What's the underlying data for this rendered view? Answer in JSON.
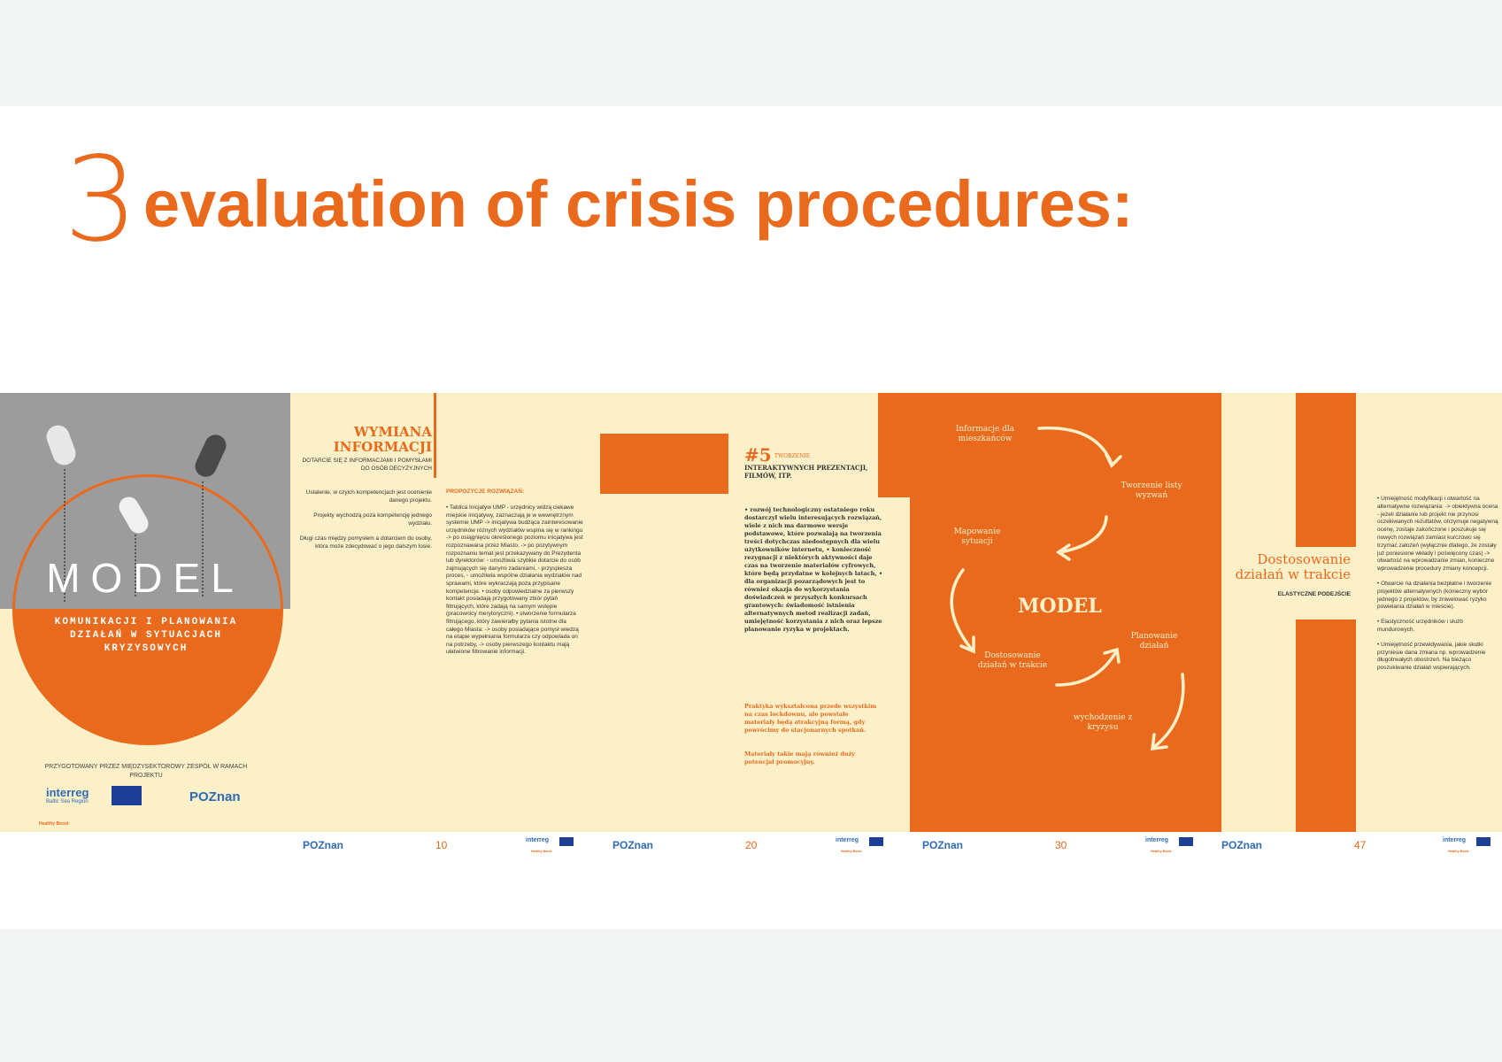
{
  "heading": {
    "number": "3",
    "title": "evaluation of crisis procedures:"
  },
  "colors": {
    "accent": "#ea6a1d",
    "cream": "#fbf0c8",
    "gray": "#9c9c9c",
    "logo_blue": "#2e6bb5"
  },
  "cover": {
    "model_word": "MODEL",
    "subtitle": "KOMUNIKACJI I PLANOWANIA DZIAŁAŃ W SYTUACJACH KRYZYSOWYCH",
    "prepared_by": "PRZYGOTOWANY PRZEZ MIĘDZYSEKTOROWY ZESPÓŁ W RAMACH PROJEKTU",
    "logo_interreg": "interreg",
    "logo_interreg_sub": "Baltic Sea Region",
    "logo_poznan": "POZnan",
    "project_name": "Healthy Boost"
  },
  "page10": {
    "title": "WYMIANA INFORMACJI",
    "subtitle": "DOTARCIE SIĘ Z INFORMACJAMI I POMYSŁAMI DO OSÓB DECYZYJNYCH",
    "col1": [
      "Ustalenie, w czyich kompetencjach jest ocenienie danego projektu.",
      "Projekty wychodzą poza kompetencję jednego wydziału.",
      "Długi czas między pomysłem a dotarciem do osoby, która może zdecydować o jego dalszym losie."
    ],
    "proposals_label": "PROPOZYCJE ROZWIĄZAŃ:",
    "col2": "• Tablica Inicjatyw UMP - urzędnicy widzą ciekawe miejskie inicjatywy, zaznaczają je w wewnętrznym systemie UMP -> inicjatywa budząca zainteresowanie urzędników różnych wydziałów wspina się w rankingu -> po osiągnięciu określonego poziomu inicjatywa jest rozpoznawana przez Miasto. -> po pozytywnym rozpoznaniu temat jest przekazywany do Prezydenta lub dyrektorów: ◦ umożliwia szybkie dotarcie do osób zajmujących się danymi zadaniami, ◦ przyspiesza proces, ◦ umożliwia wspólne działania wydziałów nad sprawami, które wykraczają poza przypisane kompetencje. • osoby odpowiedzialne za pierwszy kontakt posiadają przygotowany zbiór pytań filtrujących, które zadają na samym wstępie (pracownicy merytoryczni). • stworzenie formularza filtrującego, który zawierałby pytania istotne dla całego Miasta: -> osoby posiadające pomysł wiedzą na etapie wypełniania formularza czy odpowiada on na potrzeby, -> osoby pierwszego kontaktu mają ułatwione filtrowanie informacji.",
    "page_number": "10"
  },
  "page20": {
    "num": "#5",
    "num_tag": "TWORZENIE",
    "num_sub": "INTERAKTYWNYCH PREZENTACJI, FILMÓW, ITP.",
    "list": "• rozwój technologiczny ostatniego roku dostarczył wielu interesujących rozwiązań, wiele z nich ma darmowe wersje podstawowe, które pozwalają na tworzenia treści dotychczas niedostępnych dla wielu użytkowników internetu, • konieczność rezygnacji z niektórych aktywności daje czas na tworzenie materiałów cyfrowych, które będą przydatne w kolejnych latach, • dla organizacji pozarządowych jest to również okazja do wykorzystania doświadczeń w przyszłych konkursach grantowych: świadomość istnienia alternatywnych metod realizacji zadań, umiejętność korzystania z nich oraz lepsze planowanie ryzyka w projektach.",
    "practice": "Praktyka wykształcona przede wszystkim na czas lockdownu, ale powstałe materiały będą atrakcyjną formą, gdy powrócimy do stacjonarnych spotkań.",
    "materials": "Materiały takie mają również duży potencjał promocyjny.",
    "page_number": "20"
  },
  "page30": {
    "labels": {
      "info": "Informacje dla mieszkańców",
      "challenges": "Tworzenie listy wyzwań",
      "mapping": "Mapowanie sytuacji",
      "model": "MODEL",
      "planning": "Planowanie działań",
      "adjusting": "Dostosowanie działań w trakcie",
      "exit": "wychodzenie z kryzysu"
    },
    "page_number": "30"
  },
  "page47": {
    "title": "Dostosowanie działań w trakcie",
    "subtitle": "ELASTYCZNE PODEJŚCIE",
    "paragraphs": [
      "• Umiejętność modyfikacji i otwartość na alternatywne rozwiązania: -> obiektywna ocena - jeżeli działanie lub projekt nie przynosi oczekiwanych rezultatów, otrzymuje negatywną ocenę, zostaje zakończone i poszukuje się nowych rozwiązań zamiast kurczowo się trzymać założeń (wyłącznie dlatego, że zostały już poniesione wkłady i poświęcony czas) -> otwartość na wprowadzanie zmian, konieczne wprowadzenie procedury zmiany koncepcji.",
      "• Otwarcie na działania bezpłatne i tworzenie projektów alternatywnych (konieczny wybór jednego z projektów, by zniwelować ryzyko powielania działań w mieście).",
      "• Elastyczność urzędników i służb mundurowych.",
      "• Umiejętność przewidywania, jakie skutki przyniesie dana zmiana np. wprowadzenie długotrwałych obostrzeń. Na bieżąco poszukiwanie działań wspierających."
    ],
    "page_number": "47"
  },
  "footer": {
    "poznan": "POZnan",
    "interreg": "interreg",
    "healthy": "Healthy Boost"
  }
}
